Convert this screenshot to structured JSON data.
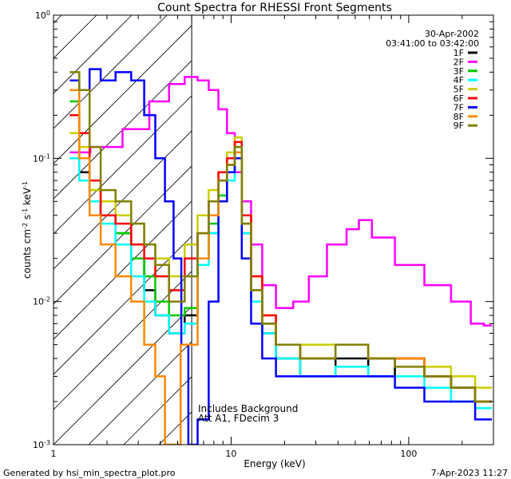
{
  "chart_data": {
    "type": "line",
    "title": "Count Spectra for RHESSI Front Segments",
    "xlabel": "Energy (keV)",
    "ylabel": "counts cm",
    "ylabel_sup1": "-2",
    "ylabel_mid": " s",
    "ylabel_sup2": "-1",
    "ylabel_end": " keV",
    "ylabel_sup3": "-1",
    "xscale": "log",
    "yscale": "log",
    "xlim": [
      1,
      300
    ],
    "ylim": [
      0.001,
      1
    ],
    "x_ticks": [
      {
        "value": 1,
        "label": "1"
      },
      {
        "value": 10,
        "label": "10"
      },
      {
        "value": 100,
        "label": "100"
      }
    ],
    "y_ticks": [
      {
        "value": 1,
        "base": "10",
        "exp": "0"
      },
      {
        "value": 0.1,
        "base": "10",
        "exp": "-1"
      },
      {
        "value": 0.01,
        "base": "10",
        "exp": "-2"
      },
      {
        "value": 0.001,
        "base": "10",
        "exp": "-3"
      }
    ],
    "shaded_region": {
      "x": [
        1,
        6
      ],
      "pattern": "diagonal-hatch"
    },
    "vertical_line_x": 6,
    "date": "30-Apr-2002",
    "time_range": "03:41:00 to 03:42:00",
    "annotations": [
      "Includes Background",
      "Att A1, FDecim 3"
    ],
    "series": [
      {
        "name": "1F",
        "color": "#000000",
        "points": [
          [
            1.3,
            0.2
          ],
          [
            1.5,
            0.08
          ],
          [
            1.7,
            0.05
          ],
          [
            2.0,
            0.04
          ],
          [
            2.5,
            0.03
          ],
          [
            3.0,
            0.02
          ],
          [
            3.5,
            0.012
          ],
          [
            4.0,
            0.008
          ],
          [
            5.0,
            0.006
          ],
          [
            6.0,
            0.008
          ],
          [
            7.0,
            0.02
          ],
          [
            8.0,
            0.03
          ],
          [
            9.0,
            0.05
          ],
          [
            10.0,
            0.08
          ],
          [
            11.0,
            0.1
          ],
          [
            12.0,
            0.03
          ],
          [
            14.0,
            0.01
          ],
          [
            16.0,
            0.006
          ],
          [
            20.0,
            0.004
          ],
          [
            30.0,
            0.003
          ],
          [
            50.0,
            0.004
          ],
          [
            70.0,
            0.003
          ],
          [
            100.0,
            0.004
          ],
          [
            150.0,
            0.003
          ],
          [
            200.0,
            0.0025
          ],
          [
            280.0,
            0.002
          ]
        ]
      },
      {
        "name": "2F",
        "color": "#ff00ff",
        "points": [
          [
            1.3,
            0.11
          ],
          [
            2.0,
            0.12
          ],
          [
            3.0,
            0.16
          ],
          [
            4.0,
            0.25
          ],
          [
            5.0,
            0.33
          ],
          [
            6.0,
            0.37
          ],
          [
            7.0,
            0.35
          ],
          [
            8.0,
            0.3
          ],
          [
            9.0,
            0.22
          ],
          [
            10.0,
            0.15
          ],
          [
            11.0,
            0.08
          ],
          [
            12.0,
            0.05
          ],
          [
            14.0,
            0.025
          ],
          [
            16.0,
            0.013
          ],
          [
            20.0,
            0.009
          ],
          [
            25.0,
            0.01
          ],
          [
            30.0,
            0.015
          ],
          [
            40.0,
            0.025
          ],
          [
            50.0,
            0.032
          ],
          [
            55.0,
            0.037
          ],
          [
            70.0,
            0.028
          ],
          [
            100.0,
            0.018
          ],
          [
            150.0,
            0.013
          ],
          [
            200.0,
            0.01
          ],
          [
            250.0,
            0.007
          ],
          [
            280.0,
            0.0068
          ]
        ]
      },
      {
        "name": "3F",
        "color": "#00cc00",
        "points": [
          [
            1.3,
            0.25
          ],
          [
            1.5,
            0.1
          ],
          [
            1.7,
            0.06
          ],
          [
            2.0,
            0.04
          ],
          [
            2.5,
            0.03
          ],
          [
            3.0,
            0.02
          ],
          [
            3.5,
            0.015
          ],
          [
            4.0,
            0.01
          ],
          [
            5.0,
            0.008
          ],
          [
            6.0,
            0.009
          ],
          [
            7.0,
            0.02
          ],
          [
            8.0,
            0.035
          ],
          [
            9.0,
            0.055
          ],
          [
            10.0,
            0.08
          ],
          [
            11.0,
            0.12
          ],
          [
            12.0,
            0.035
          ],
          [
            14.0,
            0.012
          ],
          [
            16.0,
            0.007
          ],
          [
            20.0,
            0.005
          ],
          [
            30.0,
            0.004
          ],
          [
            50.0,
            0.005
          ],
          [
            70.0,
            0.004
          ],
          [
            100.0,
            0.004
          ],
          [
            150.0,
            0.003
          ],
          [
            200.0,
            0.0025
          ],
          [
            280.0,
            0.002
          ]
        ]
      },
      {
        "name": "4F",
        "color": "#00ffff",
        "points": [
          [
            1.3,
            0.1
          ],
          [
            1.5,
            0.07
          ],
          [
            1.7,
            0.05
          ],
          [
            2.0,
            0.035
          ],
          [
            2.5,
            0.025
          ],
          [
            3.0,
            0.015
          ],
          [
            3.5,
            0.01
          ],
          [
            4.0,
            0.008
          ],
          [
            5.0,
            0.006
          ],
          [
            6.0,
            0.007
          ],
          [
            7.0,
            0.018
          ],
          [
            8.0,
            0.03
          ],
          [
            9.0,
            0.05
          ],
          [
            10.0,
            0.07
          ],
          [
            11.0,
            0.1
          ],
          [
            12.0,
            0.03
          ],
          [
            14.0,
            0.01
          ],
          [
            16.0,
            0.006
          ],
          [
            20.0,
            0.004
          ],
          [
            30.0,
            0.003
          ],
          [
            50.0,
            0.0035
          ],
          [
            70.0,
            0.003
          ],
          [
            100.0,
            0.003
          ],
          [
            150.0,
            0.0025
          ],
          [
            200.0,
            0.002
          ],
          [
            280.0,
            0.0018
          ]
        ]
      },
      {
        "name": "5F",
        "color": "#cccc00",
        "points": [
          [
            1.3,
            0.15
          ],
          [
            1.5,
            0.12
          ],
          [
            1.7,
            0.06
          ],
          [
            2.0,
            0.05
          ],
          [
            2.5,
            0.04
          ],
          [
            3.0,
            0.035
          ],
          [
            3.5,
            0.025
          ],
          [
            4.0,
            0.02
          ],
          [
            5.0,
            0.015
          ],
          [
            6.0,
            0.025
          ],
          [
            7.0,
            0.04
          ],
          [
            8.0,
            0.06
          ],
          [
            9.0,
            0.08
          ],
          [
            10.0,
            0.11
          ],
          [
            11.0,
            0.14
          ],
          [
            12.0,
            0.04
          ],
          [
            14.0,
            0.015
          ],
          [
            16.0,
            0.008
          ],
          [
            20.0,
            0.005
          ],
          [
            30.0,
            0.005
          ],
          [
            50.0,
            0.005
          ],
          [
            70.0,
            0.004
          ],
          [
            100.0,
            0.004
          ],
          [
            150.0,
            0.0035
          ],
          [
            200.0,
            0.003
          ],
          [
            280.0,
            0.0025
          ]
        ]
      },
      {
        "name": "6F",
        "color": "#ff0000",
        "points": [
          [
            1.3,
            0.2
          ],
          [
            1.5,
            0.15
          ],
          [
            1.7,
            0.07
          ],
          [
            2.0,
            0.04
          ],
          [
            2.5,
            0.035
          ],
          [
            3.0,
            0.025
          ],
          [
            3.5,
            0.02
          ],
          [
            4.0,
            0.015
          ],
          [
            5.0,
            0.012
          ],
          [
            6.0,
            0.02
          ],
          [
            7.0,
            0.03
          ],
          [
            8.0,
            0.05
          ],
          [
            9.0,
            0.08
          ],
          [
            10.0,
            0.1
          ],
          [
            11.0,
            0.13
          ],
          [
            12.0,
            0.04
          ],
          [
            14.0,
            0.015
          ],
          [
            16.0,
            0.008
          ],
          [
            20.0,
            0.005
          ],
          [
            30.0,
            0.004
          ],
          [
            50.0,
            0.005
          ],
          [
            70.0,
            0.004
          ],
          [
            100.0,
            0.004
          ],
          [
            150.0,
            0.003
          ],
          [
            200.0,
            0.0025
          ],
          [
            280.0,
            0.002
          ]
        ]
      },
      {
        "name": "7F",
        "color": "#0000ff",
        "points": [
          [
            1.3,
            0.35
          ],
          [
            1.5,
            0.3
          ],
          [
            1.7,
            0.42
          ],
          [
            2.0,
            0.35
          ],
          [
            2.5,
            0.4
          ],
          [
            3.0,
            0.35
          ],
          [
            3.5,
            0.2
          ],
          [
            4.0,
            0.1
          ],
          [
            4.5,
            0.05
          ],
          [
            5.0,
            0.02
          ],
          [
            5.5,
            0.005
          ],
          [
            6.0,
            0.001
          ],
          [
            7.0,
            0.0015
          ],
          [
            8.0,
            0.01
          ],
          [
            9.0,
            0.05
          ],
          [
            10.0,
            0.08
          ],
          [
            11.0,
            0.1
          ],
          [
            12.0,
            0.02
          ],
          [
            14.0,
            0.007
          ],
          [
            16.0,
            0.004
          ],
          [
            20.0,
            0.003
          ],
          [
            30.0,
            0.003
          ],
          [
            50.0,
            0.003
          ],
          [
            70.0,
            0.003
          ],
          [
            100.0,
            0.0025
          ],
          [
            150.0,
            0.002
          ],
          [
            200.0,
            0.002
          ],
          [
            280.0,
            0.0015
          ]
        ]
      },
      {
        "name": "8F",
        "color": "#ff8800",
        "points": [
          [
            1.3,
            0.3
          ],
          [
            1.5,
            0.1
          ],
          [
            1.7,
            0.04
          ],
          [
            2.0,
            0.025
          ],
          [
            2.5,
            0.015
          ],
          [
            3.0,
            0.01
          ],
          [
            3.5,
            0.005
          ],
          [
            4.0,
            0.003
          ],
          [
            4.5,
            0.001
          ],
          [
            6.0,
            0.005
          ],
          [
            7.0,
            0.02
          ],
          [
            8.0,
            0.04
          ],
          [
            9.0,
            0.07
          ],
          [
            10.0,
            0.09
          ],
          [
            11.0,
            0.11
          ],
          [
            12.0,
            0.035
          ],
          [
            14.0,
            0.012
          ],
          [
            16.0,
            0.007
          ],
          [
            20.0,
            0.005
          ],
          [
            30.0,
            0.004
          ],
          [
            50.0,
            0.005
          ],
          [
            70.0,
            0.004
          ],
          [
            100.0,
            0.004
          ],
          [
            150.0,
            0.003
          ],
          [
            200.0,
            0.0025
          ],
          [
            280.0,
            0.002
          ]
        ]
      },
      {
        "name": "9F",
        "color": "#808000",
        "points": [
          [
            1.3,
            0.4
          ],
          [
            1.5,
            0.3
          ],
          [
            1.7,
            0.12
          ],
          [
            2.0,
            0.06
          ],
          [
            2.5,
            0.05
          ],
          [
            3.0,
            0.035
          ],
          [
            3.5,
            0.025
          ],
          [
            4.0,
            0.018
          ],
          [
            5.0,
            0.01
          ],
          [
            6.0,
            0.015
          ],
          [
            7.0,
            0.03
          ],
          [
            8.0,
            0.05
          ],
          [
            9.0,
            0.07
          ],
          [
            10.0,
            0.09
          ],
          [
            11.0,
            0.12
          ],
          [
            12.0,
            0.035
          ],
          [
            14.0,
            0.012
          ],
          [
            16.0,
            0.007
          ],
          [
            20.0,
            0.005
          ],
          [
            30.0,
            0.004
          ],
          [
            50.0,
            0.005
          ],
          [
            70.0,
            0.004
          ],
          [
            100.0,
            0.0035
          ],
          [
            150.0,
            0.003
          ],
          [
            200.0,
            0.0025
          ],
          [
            280.0,
            0.002
          ]
        ]
      }
    ]
  },
  "footer": {
    "generated_by": "Generated by hsi_min_spectra_plot.pro",
    "timestamp": "7-Apr-2023 11:27"
  }
}
